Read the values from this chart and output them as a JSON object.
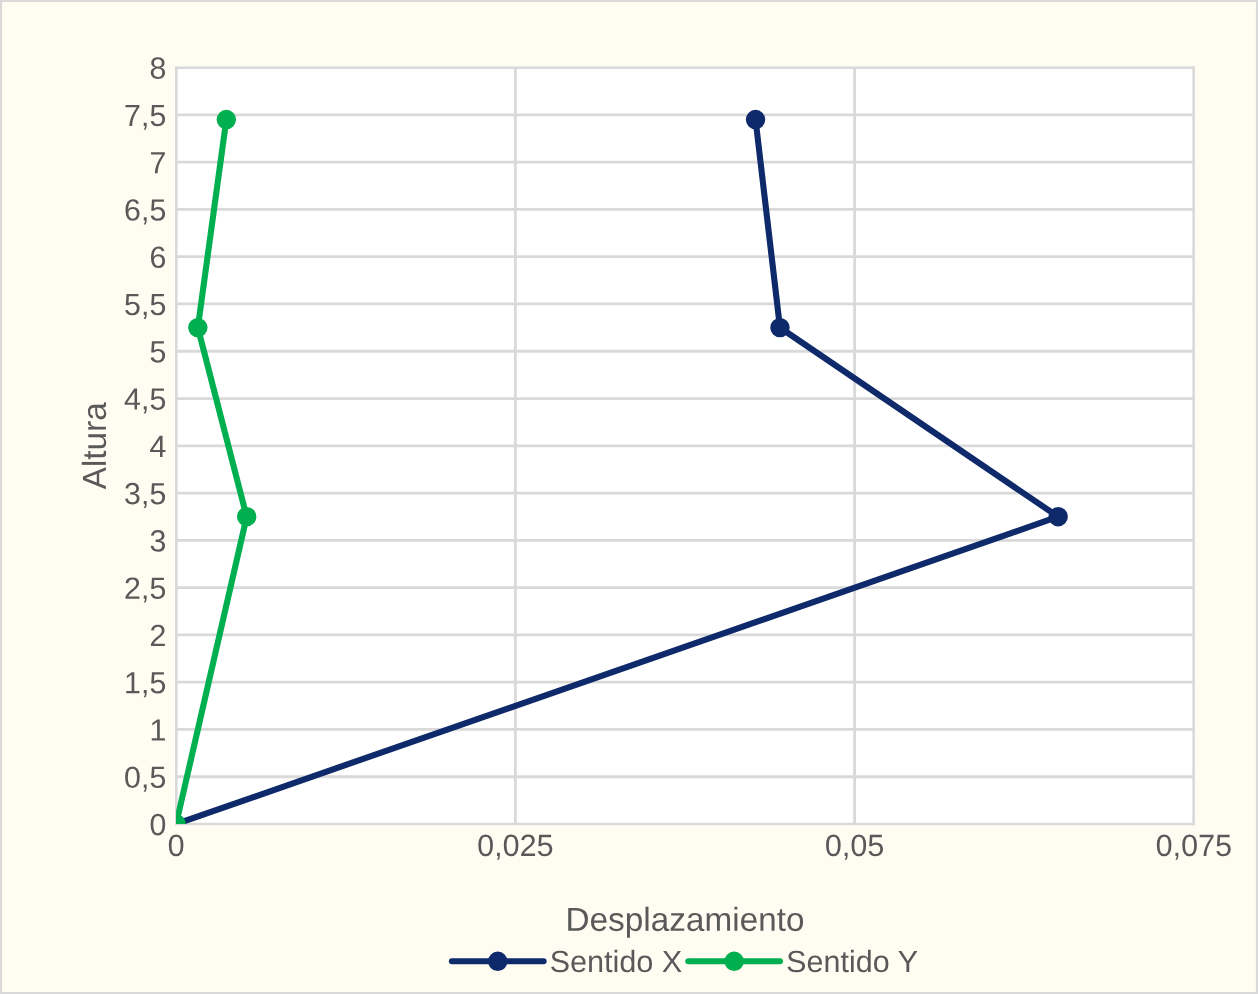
{
  "chart_data": {
    "type": "line",
    "xlabel": "Desplazamiento",
    "ylabel": "Altura",
    "marker": "circle",
    "grid": true,
    "legend": "bottom",
    "xlim": [
      0,
      0.075
    ],
    "xticks": [
      0,
      {
        "value": 0.025,
        "label": "0,025"
      },
      {
        "value": 0.05,
        "label": "0,05"
      },
      {
        "value": 0.075,
        "label": "0,075"
      }
    ],
    "ylim": [
      0,
      8
    ],
    "yticks": [
      0,
      {
        "value": 0.5,
        "label": "0,5"
      },
      1,
      {
        "value": 1.5,
        "label": "1,5"
      },
      2,
      {
        "value": 2.5,
        "label": "2,5"
      },
      3,
      {
        "value": 3.5,
        "label": "3,5"
      },
      4,
      {
        "value": 4.5,
        "label": "4,5"
      },
      5,
      {
        "value": 5.5,
        "label": "5,5"
      },
      6,
      {
        "value": 6.5,
        "label": "6,5"
      },
      7,
      {
        "value": 7.5,
        "label": "7,5"
      },
      8
    ],
    "series": [
      {
        "name": "Sentido X",
        "color": "#0e2a6b",
        "x": [
          0,
          0.065,
          0.0445,
          0.0427
        ],
        "values": [
          0,
          3.25,
          5.25,
          7.45
        ]
      },
      {
        "name": "Sentido Y",
        "color": "#00b050",
        "x": [
          0,
          0.0052,
          0.0016,
          0.0037
        ],
        "values": [
          0,
          3.25,
          5.25,
          7.45
        ]
      }
    ]
  }
}
